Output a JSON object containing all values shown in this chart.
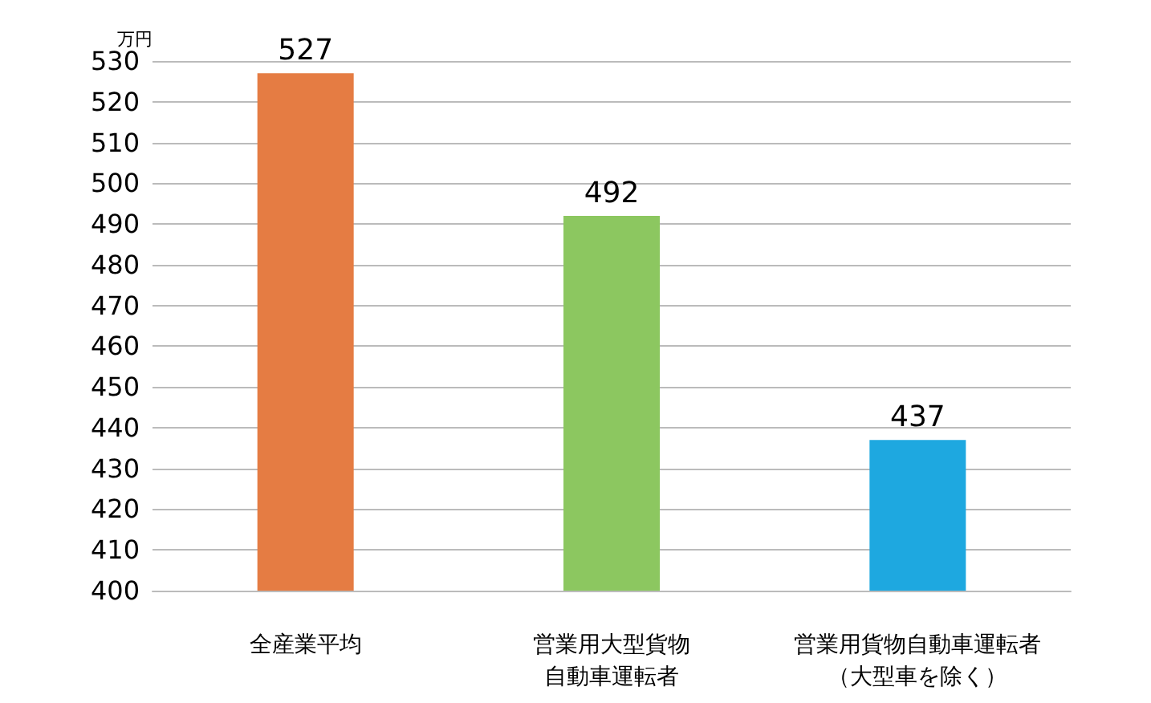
{
  "chart_data": {
    "type": "bar",
    "ylabel": "万円",
    "categories": [
      "全産業平均",
      "営業用大型貨物自動車運転者",
      "営業用貨物自動車運転者（大型車を除く）"
    ],
    "values": [
      527,
      492,
      437
    ],
    "colors": [
      "#e57c43",
      "#8cc760",
      "#1ea8e0"
    ],
    "ylim": [
      400,
      530
    ],
    "yticks": [
      400,
      410,
      420,
      430,
      440,
      450,
      460,
      470,
      480,
      490,
      500,
      510,
      520,
      530
    ],
    "grid": "y",
    "data_labels": true
  }
}
